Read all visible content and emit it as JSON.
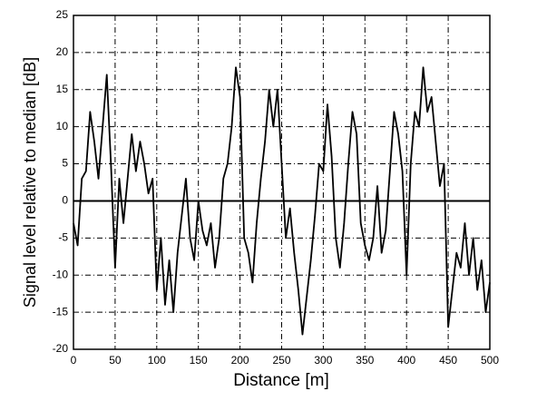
{
  "chart_data": {
    "type": "line",
    "xlabel": "Distance [m]",
    "ylabel": "Signal level relative to median [dB]",
    "x": [
      0,
      5,
      10,
      15,
      20,
      25,
      30,
      35,
      40,
      45,
      50,
      55,
      60,
      65,
      70,
      75,
      80,
      85,
      90,
      95,
      100,
      105,
      110,
      115,
      120,
      125,
      130,
      135,
      140,
      145,
      150,
      155,
      160,
      165,
      170,
      175,
      180,
      185,
      190,
      195,
      200,
      205,
      210,
      215,
      220,
      225,
      230,
      235,
      240,
      245,
      250,
      255,
      260,
      265,
      270,
      275,
      280,
      285,
      290,
      295,
      300,
      305,
      310,
      315,
      320,
      325,
      330,
      335,
      340,
      345,
      350,
      355,
      360,
      365,
      370,
      375,
      380,
      385,
      390,
      395,
      400,
      405,
      410,
      415,
      420,
      425,
      430,
      435,
      440,
      445,
      450,
      455,
      460,
      465,
      470,
      475,
      480,
      485,
      490,
      495,
      500
    ],
    "series": [
      {
        "color": "#000000",
        "values": [
          -3,
          -6,
          3,
          4,
          12,
          8,
          3,
          10,
          17,
          5,
          -9,
          3,
          -3,
          3,
          9,
          4,
          8,
          5,
          1,
          3,
          -12,
          -5,
          -14,
          -8,
          -15,
          -7,
          -2,
          3,
          -5,
          -8,
          0,
          -4,
          -6,
          -3,
          -9,
          -5,
          3,
          5,
          10,
          18,
          14,
          -5,
          -7,
          -11,
          -3,
          3,
          8,
          15,
          10,
          15,
          5,
          -5,
          -1,
          -7,
          -12,
          -18,
          -13,
          -8,
          -2,
          5,
          4,
          13,
          6,
          -5,
          -9,
          -3,
          5,
          12,
          9,
          -3,
          -6,
          -8,
          -5,
          2,
          -7,
          -4,
          4,
          12,
          9,
          4,
          -10,
          5,
          12,
          10,
          18,
          12,
          14,
          8,
          2,
          5,
          -17,
          -12,
          -7,
          -9,
          -3,
          -10,
          -5,
          -12,
          -8,
          -15,
          -11
        ]
      }
    ],
    "xlim": [
      0,
      500
    ],
    "xticks": [
      0,
      50,
      100,
      150,
      200,
      250,
      300,
      350,
      400,
      450,
      500
    ],
    "ylim": [
      -20,
      25
    ],
    "yticks": [
      -20,
      -15,
      -10,
      -5,
      0,
      5,
      10,
      15,
      20,
      25
    ],
    "grid": true
  }
}
